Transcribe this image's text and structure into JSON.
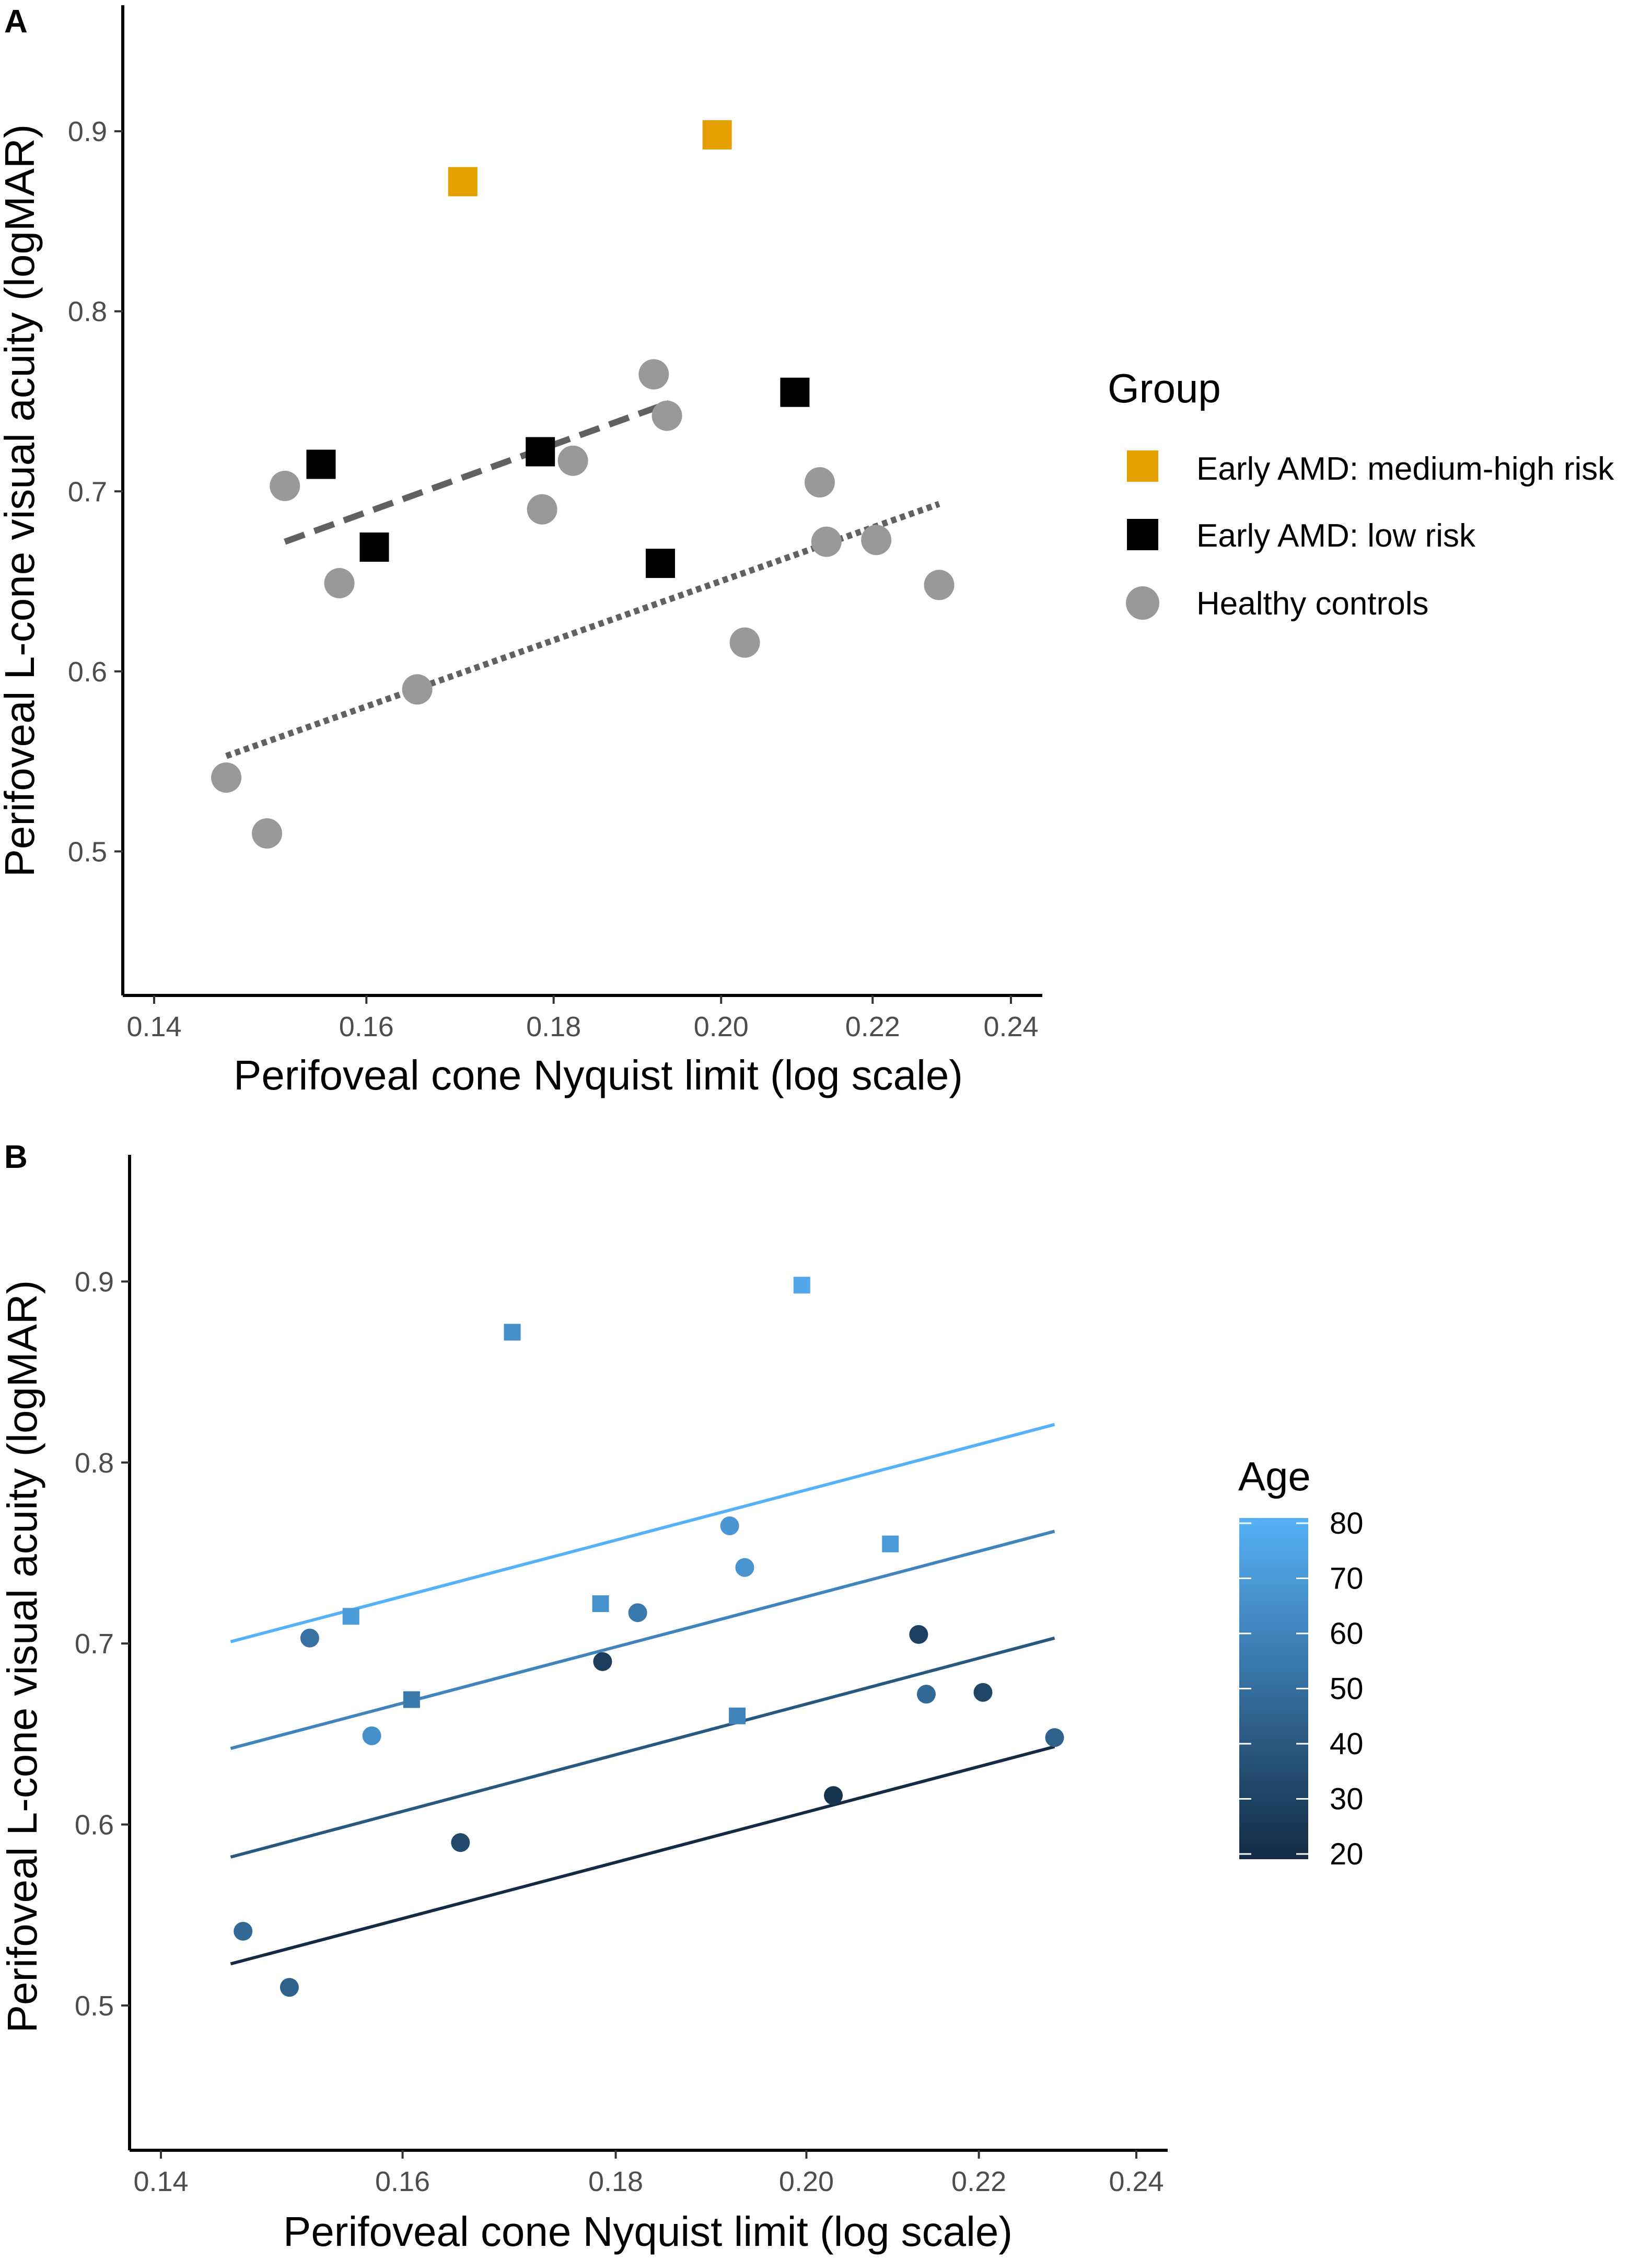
{
  "colors": {
    "amd_medium_high": "#E69F00",
    "amd_low": "#000000",
    "healthy": "#999999",
    "fit_line_a": "#616161",
    "axis": "#000000",
    "tick_text": "#4D4D4D",
    "age_low": "#132B43",
    "age_high": "#56B1F7"
  },
  "chart_data": [
    {
      "panel": "A",
      "type": "scatter",
      "xlabel": "Perifoveal cone Nyquist limit (log scale)",
      "ylabel": "Perifoveal L-cone visual acuity (logMAR)",
      "xscale": "log",
      "xlim": [
        0.14,
        0.24
      ],
      "ylim": [
        0.42,
        0.97
      ],
      "xticks": [
        "0.14",
        "0.16",
        "0.18",
        "0.20",
        "0.22",
        "0.24"
      ],
      "yticks": [
        "0.5",
        "0.6",
        "0.7",
        "0.8",
        "0.9"
      ],
      "legend": {
        "title": "Group",
        "position": "right",
        "entries": [
          {
            "label": "Early AMD: medium-high risk",
            "key": "amd_mh",
            "shape": "square"
          },
          {
            "label": "Early AMD: low risk",
            "key": "amd_low",
            "shape": "square"
          },
          {
            "label": "Healthy controls",
            "key": "healthy",
            "shape": "circle"
          }
        ]
      },
      "series": [
        {
          "name": "Early AMD: medium-high risk",
          "key": "amd_mh",
          "shape": "square",
          "points": [
            [
              0.17,
              0.872
            ],
            [
              0.1995,
              0.898
            ]
          ]
        },
        {
          "name": "Early AMD: low risk",
          "key": "amd_low",
          "shape": "square",
          "points": [
            [
              0.1555,
              0.715
            ],
            [
              0.1608,
              0.669
            ],
            [
              0.1785,
              0.722
            ],
            [
              0.1925,
              0.66
            ],
            [
              0.2095,
              0.755
            ]
          ]
        },
        {
          "name": "Healthy controls",
          "key": "healthy",
          "shape": "circle",
          "points": [
            [
              0.1465,
              0.541
            ],
            [
              0.1503,
              0.51
            ],
            [
              0.152,
              0.703
            ],
            [
              0.1573,
              0.649
            ],
            [
              0.1652,
              0.59
            ],
            [
              0.1787,
              0.69
            ],
            [
              0.1822,
              0.717
            ],
            [
              0.1917,
              0.765
            ],
            [
              0.1933,
              0.742
            ],
            [
              0.203,
              0.616
            ],
            [
              0.2128,
              0.705
            ],
            [
              0.2137,
              0.672
            ],
            [
              0.2205,
              0.673
            ],
            [
              0.2294,
              0.648
            ]
          ]
        }
      ],
      "fit_lines": [
        {
          "group": "Early AMD: low risk",
          "style": "dashed",
          "from": [
            0.152,
            0.672
          ],
          "to": [
            0.1935,
            0.749
          ]
        },
        {
          "group": "Healthy controls",
          "style": "dotted",
          "from": [
            0.1465,
            0.553
          ],
          "to": [
            0.2294,
            0.693
          ]
        }
      ]
    },
    {
      "panel": "B",
      "type": "scatter",
      "xlabel": "Perifoveal cone Nyquist limit (log scale)",
      "ylabel": "Perifoveal L-cone visual acuity (logMAR)",
      "xscale": "log",
      "xlim": [
        0.14,
        0.24
      ],
      "ylim": [
        0.42,
        0.97
      ],
      "xticks": [
        "0.14",
        "0.16",
        "0.18",
        "0.20",
        "0.22",
        "0.24"
      ],
      "yticks": [
        "0.5",
        "0.6",
        "0.7",
        "0.8",
        "0.9"
      ],
      "colorbar": {
        "title": "Age",
        "range": [
          20,
          80
        ],
        "ticks": [
          "20",
          "30",
          "40",
          "50",
          "60",
          "70",
          "80"
        ]
      },
      "points": [
        {
          "x": 0.17,
          "y": 0.872,
          "age": 65,
          "shape": "square"
        },
        {
          "x": 0.1995,
          "y": 0.898,
          "age": 76,
          "shape": "square"
        },
        {
          "x": 0.1555,
          "y": 0.715,
          "age": 70,
          "shape": "square"
        },
        {
          "x": 0.1608,
          "y": 0.669,
          "age": 55,
          "shape": "square"
        },
        {
          "x": 0.1785,
          "y": 0.722,
          "age": 66,
          "shape": "square"
        },
        {
          "x": 0.1925,
          "y": 0.66,
          "age": 60,
          "shape": "square"
        },
        {
          "x": 0.2095,
          "y": 0.755,
          "age": 70,
          "shape": "square"
        },
        {
          "x": 0.1465,
          "y": 0.541,
          "age": 48,
          "shape": "circle"
        },
        {
          "x": 0.1503,
          "y": 0.51,
          "age": 44,
          "shape": "circle"
        },
        {
          "x": 0.152,
          "y": 0.703,
          "age": 52,
          "shape": "circle"
        },
        {
          "x": 0.1573,
          "y": 0.649,
          "age": 65,
          "shape": "circle"
        },
        {
          "x": 0.1652,
          "y": 0.59,
          "age": 34,
          "shape": "circle"
        },
        {
          "x": 0.1787,
          "y": 0.69,
          "age": 28,
          "shape": "circle"
        },
        {
          "x": 0.1822,
          "y": 0.717,
          "age": 55,
          "shape": "circle"
        },
        {
          "x": 0.1917,
          "y": 0.765,
          "age": 68,
          "shape": "circle"
        },
        {
          "x": 0.1933,
          "y": 0.742,
          "age": 67,
          "shape": "circle"
        },
        {
          "x": 0.203,
          "y": 0.616,
          "age": 24,
          "shape": "circle"
        },
        {
          "x": 0.2128,
          "y": 0.705,
          "age": 30,
          "shape": "circle"
        },
        {
          "x": 0.2137,
          "y": 0.672,
          "age": 48,
          "shape": "circle"
        },
        {
          "x": 0.2205,
          "y": 0.673,
          "age": 32,
          "shape": "circle"
        },
        {
          "x": 0.2294,
          "y": 0.648,
          "age": 44,
          "shape": "circle"
        }
      ],
      "age_lines": [
        {
          "age": 20,
          "from": [
            0.1455,
            0.523
          ],
          "to": [
            0.2294,
            0.643
          ]
        },
        {
          "age": 40,
          "from": [
            0.1455,
            0.582
          ],
          "to": [
            0.2294,
            0.703
          ]
        },
        {
          "age": 60,
          "from": [
            0.1455,
            0.642
          ],
          "to": [
            0.2294,
            0.762
          ]
        },
        {
          "age": 80,
          "from": [
            0.1455,
            0.701
          ],
          "to": [
            0.2294,
            0.821
          ]
        }
      ]
    }
  ]
}
